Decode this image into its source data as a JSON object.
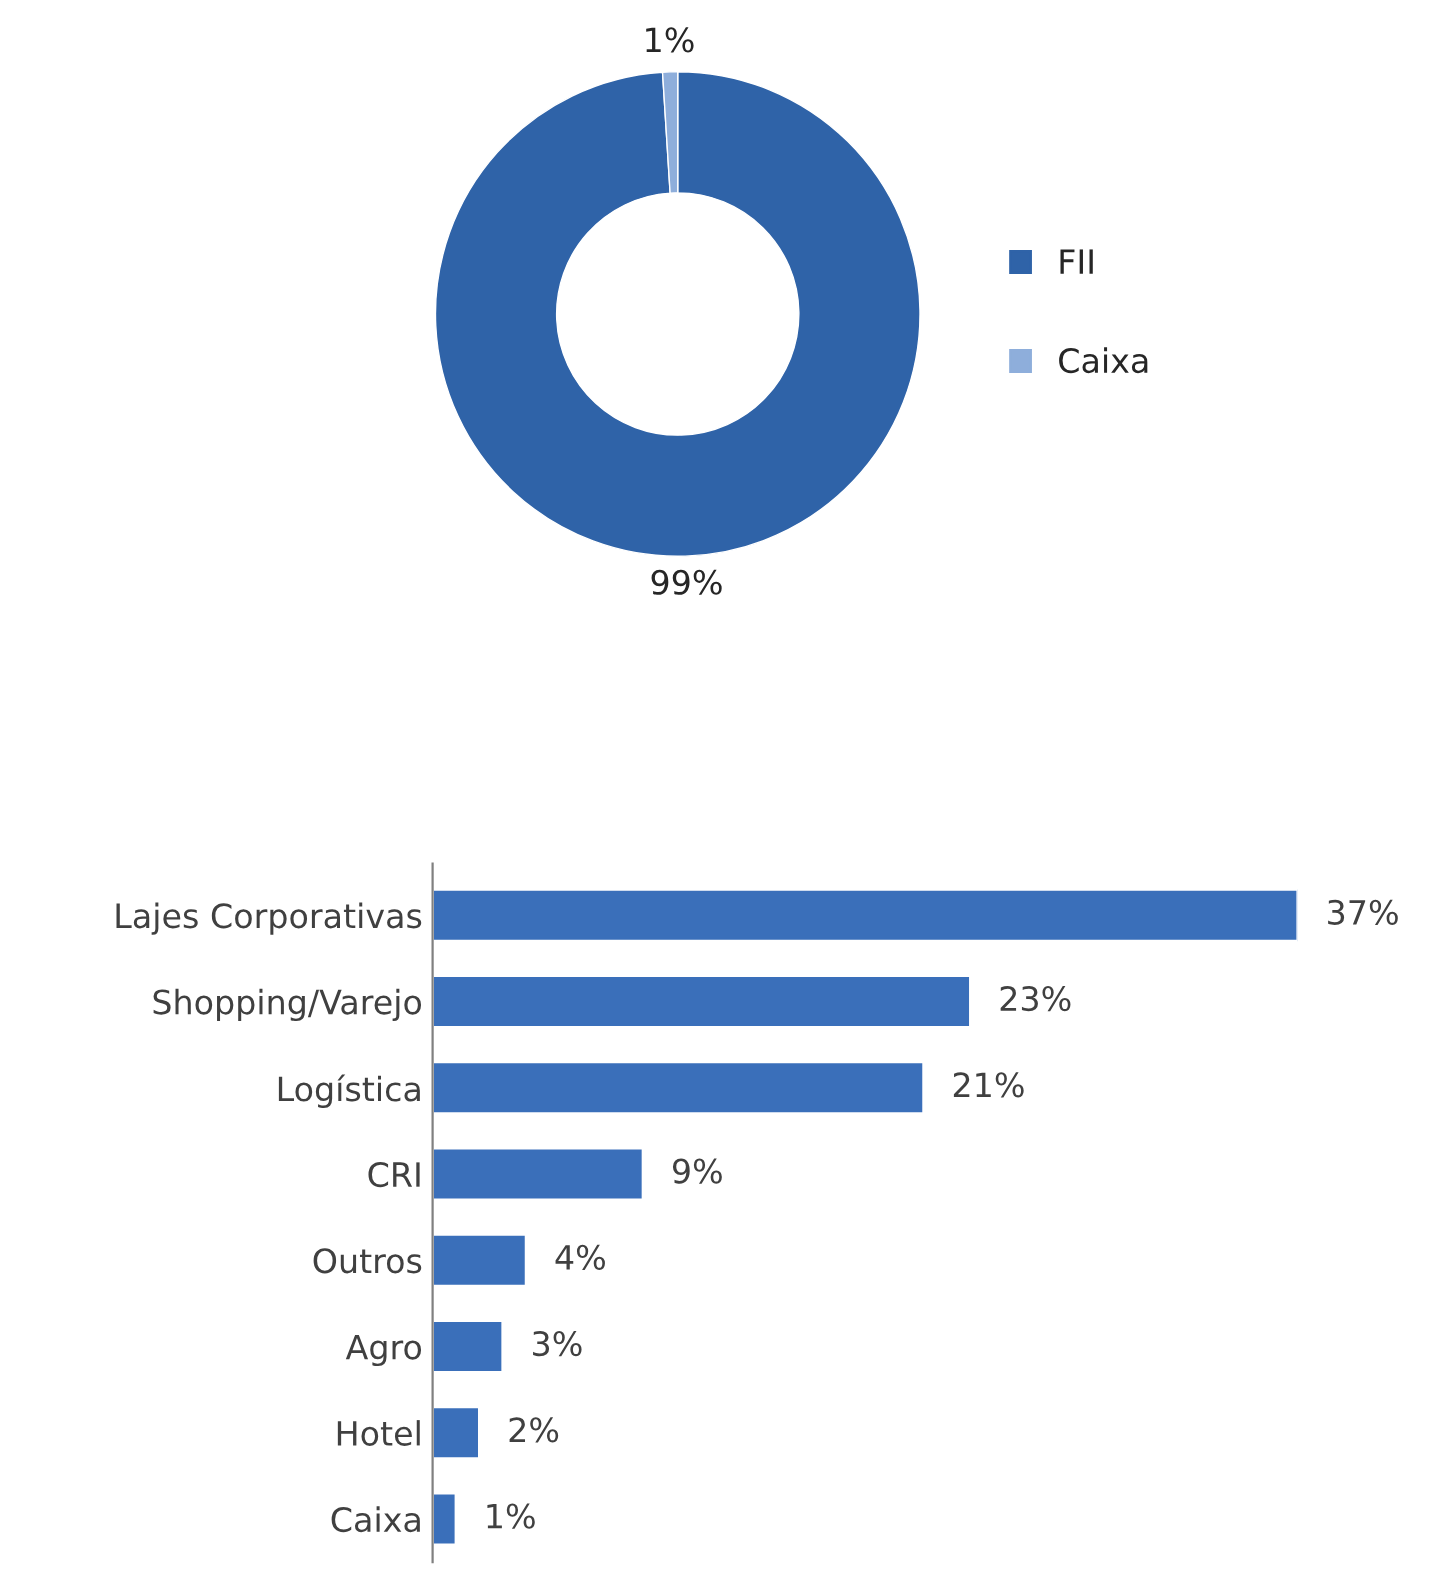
{
  "chart_data": [
    {
      "type": "donut",
      "categories": [
        "FII",
        "Caixa"
      ],
      "values": [
        99,
        1
      ],
      "colors": [
        "#2f63a8",
        "#8eaedb"
      ],
      "value_labels": [
        "99%",
        "1%"
      ],
      "legend": "right"
    },
    {
      "type": "bar",
      "orientation": "horizontal",
      "categories": [
        "Lajes Corporativas",
        "Shopping/Varejo",
        "Logística",
        "CRI",
        "Outros",
        "Agro",
        "Hotel",
        "Caixa"
      ],
      "values": [
        37,
        23,
        21,
        9,
        4,
        3,
        2,
        1
      ],
      "color": "#3a6fba",
      "value_labels": [
        "37%",
        "23%",
        "21%",
        "9%",
        "4%",
        "3%",
        "2%",
        "1%"
      ]
    }
  ]
}
